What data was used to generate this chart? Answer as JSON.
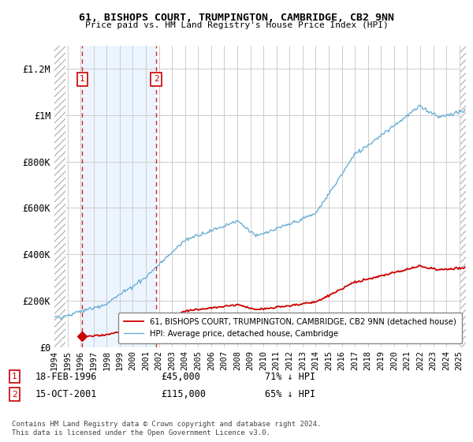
{
  "title1": "61, BISHOPS COURT, TRUMPINGTON, CAMBRIDGE, CB2 9NN",
  "title2": "Price paid vs. HM Land Registry's House Price Index (HPI)",
  "ylabel_ticks": [
    "£0",
    "£200K",
    "£400K",
    "£600K",
    "£800K",
    "£1M",
    "£1.2M"
  ],
  "ytick_vals": [
    0,
    200000,
    400000,
    600000,
    800000,
    1000000,
    1200000
  ],
  "ylim": [
    0,
    1300000
  ],
  "xlim_start": 1994.0,
  "xlim_end": 2025.5,
  "hpi_color": "#6baed6",
  "paid_color": "#cc0000",
  "sale1_date": 1996.13,
  "sale1_price": 45000,
  "sale2_date": 2001.79,
  "sale2_price": 115000,
  "legend_label1": "61, BISHOPS COURT, TRUMPINGTON, CAMBRIDGE, CB2 9NN (detached house)",
  "legend_label2": "HPI: Average price, detached house, Cambridge",
  "annotation1_date": "18-FEB-1996",
  "annotation1_price": "£45,000",
  "annotation1_hpi": "71% ↓ HPI",
  "annotation2_date": "15-OCT-2001",
  "annotation2_price": "£115,000",
  "annotation2_hpi": "65% ↓ HPI",
  "footer": "Contains HM Land Registry data © Crown copyright and database right 2024.\nThis data is licensed under the Open Government Licence v3.0.",
  "background_color": "#ffffff",
  "grid_color": "#cccccc",
  "shaded_region_color": "#ddeeff"
}
